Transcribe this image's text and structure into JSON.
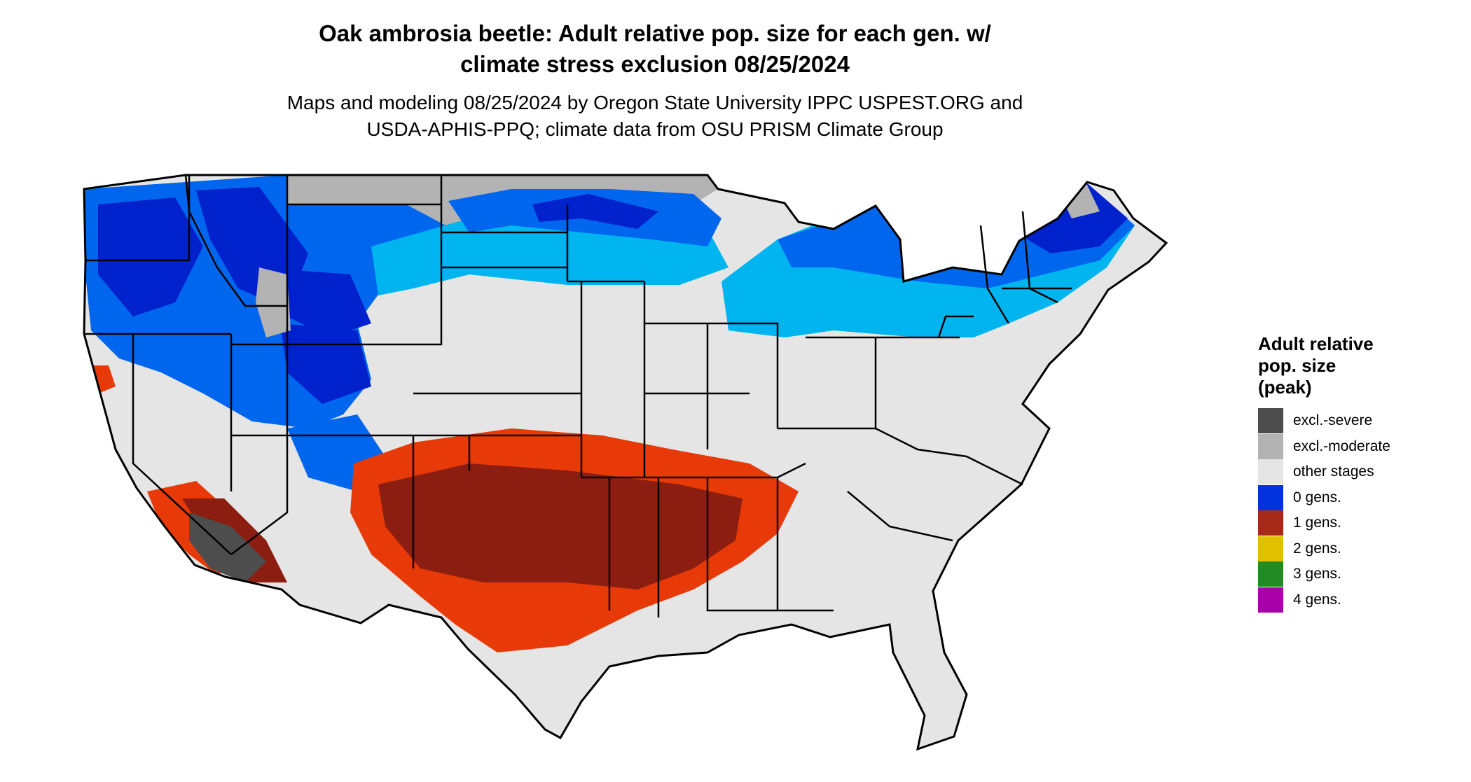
{
  "title": {
    "line1": "Oak ambrosia beetle: Adult relative pop. size for each gen. w/",
    "line2": "climate stress exclusion 08/25/2024"
  },
  "subtitle": {
    "line1": "Maps and modeling 08/25/2024 by Oregon State University IPPC USPEST.ORG and",
    "line2": "USDA-APHIS-PPQ; climate data from OSU PRISM Climate Group"
  },
  "legend": {
    "title_lines": [
      "Adult relative",
      "pop. size",
      "(peak)"
    ],
    "items": [
      {
        "label": "excl.-severe",
        "color": "#4d4d4d"
      },
      {
        "label": "excl.-moderate",
        "color": "#b3b3b3"
      },
      {
        "label": "other stages",
        "color": "#e5e5e5"
      },
      {
        "label": "0 gens.",
        "color": "#0033dd"
      },
      {
        "label": "1 gens.",
        "color": "#a52a17"
      },
      {
        "label": "2 gens.",
        "color": "#e0c000"
      },
      {
        "label": "3 gens.",
        "color": "#228b22"
      },
      {
        "label": "4 gens.",
        "color": "#aa00aa"
      }
    ]
  },
  "map_colors": {
    "land": "#e5e5e5",
    "blue_dark": "#0022cc",
    "blue_mid": "#0066ee",
    "blue_light": "#00b4f0",
    "red_dark": "#8b1e10",
    "red_orange": "#e83a08",
    "grey_light": "#b3b3b3",
    "grey_dark": "#4d4d4d",
    "yellow": "#ffee00",
    "border": "#000000"
  }
}
